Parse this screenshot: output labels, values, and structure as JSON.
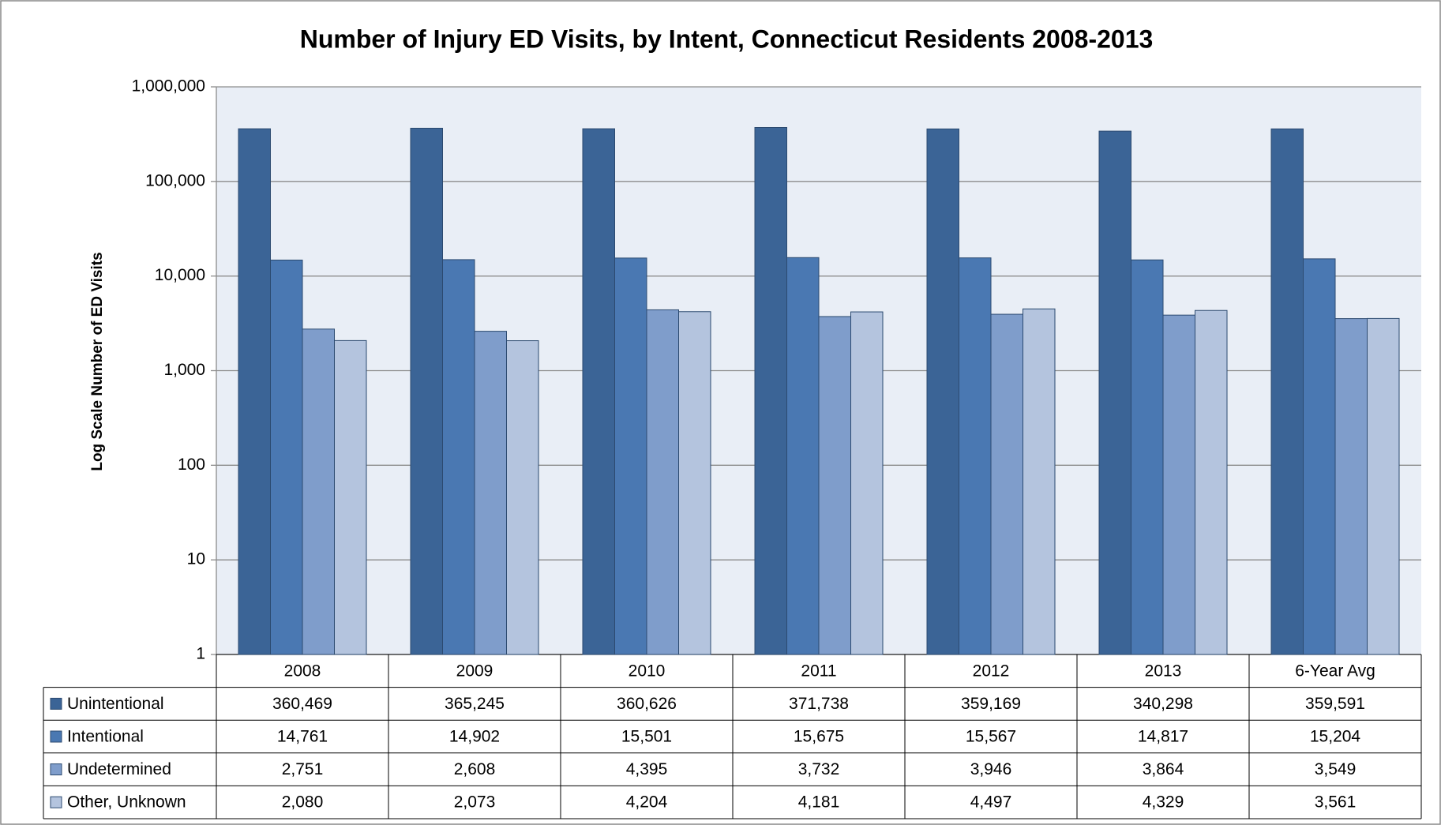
{
  "chart_data": {
    "type": "bar",
    "title": "Number of Injury ED Visits, by Intent, Connecticut Residents  2008-2013",
    "y_label": "Log Scale Number of ED Visits",
    "categories": [
      "2008",
      "2009",
      "2010",
      "2011",
      "2012",
      "2013",
      "6-Year Avg"
    ],
    "series": [
      {
        "name": "Unintentional",
        "color": "#3b6496",
        "values": [
          360469,
          365245,
          360626,
          371738,
          359169,
          340298,
          359591
        ],
        "value_labels": [
          "360,469",
          "365,245",
          "360,626",
          "371,738",
          "359,169",
          "340,298",
          "359,591"
        ]
      },
      {
        "name": "Intentional",
        "color": "#4a78b2",
        "values": [
          14761,
          14902,
          15501,
          15675,
          15567,
          14817,
          15204
        ],
        "value_labels": [
          "14,761",
          "14,902",
          "15,501",
          "15,675",
          "15,567",
          "14,817",
          "15,204"
        ]
      },
      {
        "name": "Undetermined",
        "color": "#7f9dcb",
        "values": [
          2751,
          2608,
          4395,
          3732,
          3946,
          3864,
          3549
        ],
        "value_labels": [
          "2,751",
          "2,608",
          "4,395",
          "3,732",
          "3,946",
          "3,864",
          "3,549"
        ]
      },
      {
        "name": "Other, Unknown",
        "color": "#b4c4de",
        "values": [
          2080,
          2073,
          4204,
          4181,
          4497,
          4329,
          3561
        ],
        "value_labels": [
          "2,080",
          "2,073",
          "4,204",
          "4,181",
          "4,497",
          "4,329",
          "3,561"
        ]
      }
    ],
    "log_scale": true,
    "ylim": [
      1,
      1000000
    ],
    "yticks": [
      1,
      10,
      100,
      {
        "value": 1000,
        "label": "1,000"
      },
      {
        "value": 10000,
        "label": "10,000"
      },
      {
        "value": 100000,
        "label": "100,000"
      },
      {
        "value": 1000000,
        "label": "1,000,000"
      }
    ],
    "grid": true
  }
}
